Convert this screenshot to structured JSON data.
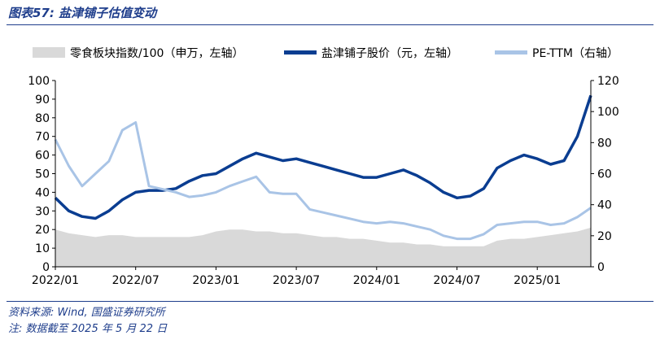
{
  "header": {
    "title": "图表57: 盐津铺子估值变动"
  },
  "footer": {
    "source": "资料来源: Wind, 国盛证券研究所",
    "note": "注: 数据截至 2025 年 5 月 22 日"
  },
  "chart_data": {
    "type": "line",
    "title": "",
    "xlabel": "",
    "ylabel": "",
    "x_ticks": [
      "2022/01",
      "2022/07",
      "2023/01",
      "2023/07",
      "2024/01",
      "2024/07",
      "2025/01"
    ],
    "x_range": [
      "2022/01",
      "2025/05"
    ],
    "left_axis": {
      "ylim": [
        0,
        100
      ],
      "ticks": [
        0,
        10,
        20,
        30,
        40,
        50,
        60,
        70,
        80,
        90,
        100
      ]
    },
    "right_axis": {
      "ylim": [
        0,
        120
      ],
      "ticks": [
        0,
        20,
        40,
        60,
        80,
        100,
        120
      ]
    },
    "legend_position": "top",
    "colors": {
      "area": "#d9d9d9",
      "price": "#0a3d91",
      "pe": "#a9c4e6"
    },
    "series": [
      {
        "name": "零食板块指数/100（申万，左轴）",
        "kind": "area",
        "axis": "left",
        "x": [
          "2022/01",
          "2022/02",
          "2022/03",
          "2022/04",
          "2022/05",
          "2022/06",
          "2022/07",
          "2022/08",
          "2022/09",
          "2022/10",
          "2022/11",
          "2022/12",
          "2023/01",
          "2023/02",
          "2023/03",
          "2023/04",
          "2023/05",
          "2023/06",
          "2023/07",
          "2023/08",
          "2023/09",
          "2023/10",
          "2023/11",
          "2023/12",
          "2024/01",
          "2024/02",
          "2024/03",
          "2024/04",
          "2024/05",
          "2024/06",
          "2024/07",
          "2024/08",
          "2024/09",
          "2024/10",
          "2024/11",
          "2024/12",
          "2025/01",
          "2025/02",
          "2025/03",
          "2025/04",
          "2025/05"
        ],
        "values": [
          20,
          18,
          17,
          16,
          17,
          17,
          16,
          16,
          16,
          16,
          16,
          17,
          19,
          20,
          20,
          19,
          19,
          18,
          18,
          17,
          16,
          16,
          15,
          15,
          14,
          13,
          13,
          12,
          12,
          11,
          11,
          11,
          11,
          14,
          15,
          15,
          16,
          17,
          18,
          19,
          21
        ]
      },
      {
        "name": "盐津铺子股价（元，左轴）",
        "kind": "line",
        "axis": "left",
        "x": [
          "2022/01",
          "2022/02",
          "2022/03",
          "2022/04",
          "2022/05",
          "2022/06",
          "2022/07",
          "2022/08",
          "2022/09",
          "2022/10",
          "2022/11",
          "2022/12",
          "2023/01",
          "2023/02",
          "2023/03",
          "2023/04",
          "2023/05",
          "2023/06",
          "2023/07",
          "2023/08",
          "2023/09",
          "2023/10",
          "2023/11",
          "2023/12",
          "2024/01",
          "2024/02",
          "2024/03",
          "2024/04",
          "2024/05",
          "2024/06",
          "2024/07",
          "2024/08",
          "2024/09",
          "2024/10",
          "2024/11",
          "2024/12",
          "2025/01",
          "2025/02",
          "2025/03",
          "2025/04",
          "2025/05"
        ],
        "values": [
          37,
          30,
          27,
          26,
          30,
          36,
          40,
          41,
          41,
          42,
          46,
          49,
          50,
          54,
          58,
          61,
          59,
          57,
          58,
          56,
          54,
          52,
          50,
          48,
          48,
          50,
          52,
          49,
          45,
          40,
          37,
          38,
          42,
          53,
          57,
          60,
          58,
          55,
          57,
          70,
          92
        ]
      },
      {
        "name": "PE-TTM（右轴）",
        "kind": "line",
        "axis": "right",
        "x": [
          "2022/01",
          "2022/02",
          "2022/03",
          "2022/04",
          "2022/05",
          "2022/06",
          "2022/07",
          "2022/08",
          "2022/09",
          "2022/10",
          "2022/11",
          "2022/12",
          "2023/01",
          "2023/02",
          "2023/03",
          "2023/04",
          "2023/05",
          "2023/06",
          "2023/07",
          "2023/08",
          "2023/09",
          "2023/10",
          "2023/11",
          "2023/12",
          "2024/01",
          "2024/02",
          "2024/03",
          "2024/04",
          "2024/05",
          "2024/06",
          "2024/07",
          "2024/08",
          "2024/09",
          "2024/10",
          "2024/11",
          "2024/12",
          "2025/01",
          "2025/02",
          "2025/03",
          "2025/04",
          "2025/05"
        ],
        "values": [
          82,
          65,
          52,
          60,
          68,
          88,
          93,
          52,
          50,
          48,
          45,
          46,
          48,
          52,
          55,
          58,
          48,
          47,
          47,
          37,
          35,
          33,
          31,
          29,
          28,
          29,
          28,
          26,
          24,
          20,
          18,
          18,
          21,
          27,
          28,
          29,
          29,
          27,
          28,
          32,
          38
        ]
      }
    ]
  }
}
